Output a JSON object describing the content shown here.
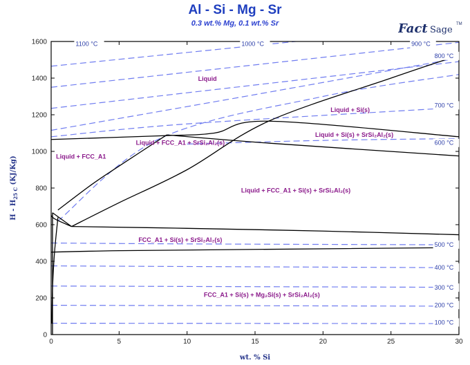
{
  "header": {
    "title": "Al - Si - Mg - Sr",
    "subtitle": "0.3 wt.% Mg,  0.1 wt.% Sr",
    "logo_main": "Fact",
    "logo_sage": "Sage",
    "logo_tm": "TM"
  },
  "colors": {
    "title": "#1f3fbf",
    "boundary": "#000000",
    "isotherm": "#6f7cf0",
    "region_label": "#8b1a8b",
    "logo": "#1d2f6b"
  },
  "chart_data": {
    "type": "line",
    "title": "Al - Si - Mg - Sr",
    "subtitle": "0.3 wt.% Mg,  0.1 wt.% Sr",
    "xlabel": "wt. % Si",
    "ylabel": "H - H25 C (KJ/Kg)",
    "ylabel_parts": {
      "main": "H - H",
      "sub": "25 C",
      "unit": " (KJ/Kg)"
    },
    "xlim": [
      0,
      30
    ],
    "ylim": [
      0,
      1600
    ],
    "x_ticks": [
      0,
      5,
      10,
      15,
      20,
      25,
      30
    ],
    "y_ticks": [
      0,
      200,
      400,
      600,
      800,
      1000,
      1200,
      1400,
      1600
    ],
    "grid": false,
    "boundaries": [
      {
        "x": [
          0,
          8,
          12,
          16,
          30
        ],
        "y": [
          1065,
          1085,
          1100,
          1165,
          1080
        ]
      },
      {
        "x": [
          8.5,
          16,
          30
        ],
        "y": [
          1090,
          1045,
          975
        ]
      },
      {
        "x": [
          0.5,
          3,
          5,
          8.5
        ],
        "y": [
          680,
          820,
          920,
          1090
        ]
      },
      {
        "x": [
          1.5,
          5,
          10,
          16,
          25,
          30
        ],
        "y": [
          590,
          720,
          900,
          1165,
          1400,
          1525
        ]
      },
      {
        "x": [
          0.1,
          1.5
        ],
        "y": [
          665,
          590
        ]
      },
      {
        "x": [
          1.5,
          10,
          20,
          30
        ],
        "y": [
          590,
          580,
          565,
          545
        ]
      },
      {
        "x": [
          0,
          0.3,
          1.5
        ],
        "y": [
          650,
          630,
          590
        ]
      },
      {
        "x": [
          0,
          5,
          15,
          30
        ],
        "y": [
          450,
          458,
          465,
          475
        ]
      },
      {
        "x": [
          0.5,
          0.25,
          0.1,
          0.05
        ],
        "y": [
          640,
          450,
          250,
          60
        ]
      },
      {
        "x": [
          0.1,
          0.1
        ],
        "y": [
          0,
          665
        ]
      }
    ],
    "isotherms": [
      {
        "label": "1100 °C",
        "x": [
          0,
          30
        ],
        "y": [
          1465,
          1690
        ]
      },
      {
        "label": "1000 °C",
        "x": [
          0,
          30
        ],
        "y": [
          1350,
          1595
        ]
      },
      {
        "label": "900 °C",
        "x": [
          0,
          30
        ],
        "y": [
          1235,
          1490
        ]
      },
      {
        "label": "800 °C",
        "x": [
          0,
          15,
          30
        ],
        "y": [
          1115,
          1310,
          1510
        ]
      },
      {
        "label": "700 °C",
        "x": [
          0,
          10,
          30
        ],
        "y": [
          1080,
          1150,
          1240
        ]
      },
      {
        "label": "700 °C (continuation)",
        "x": [
          0.5,
          8,
          20,
          30
        ],
        "y": [
          620,
          1070,
          1300,
          1420
        ]
      },
      {
        "label": "600 °C",
        "x": [
          10,
          20,
          30
        ],
        "y": [
          1040,
          1060,
          1070
        ]
      },
      {
        "label": "500 °C",
        "x": [
          0,
          10,
          30
        ],
        "y": [
          500,
          495,
          490
        ]
      },
      {
        "label": "400 °C",
        "x": [
          0,
          30
        ],
        "y": [
          375,
          365
        ]
      },
      {
        "label": "300 °C",
        "x": [
          0,
          30
        ],
        "y": [
          265,
          258
        ]
      },
      {
        "label": "200 °C",
        "x": [
          0,
          30
        ],
        "y": [
          160,
          155
        ]
      },
      {
        "label": "100 °C",
        "x": [
          0,
          30
        ],
        "y": [
          62,
          60
        ]
      }
    ],
    "isotherm_labels": [
      {
        "text": "1100 °C",
        "x": 1.8,
        "y": 1575
      },
      {
        "text": "1000 °C",
        "x": 14,
        "y": 1575
      },
      {
        "text": "900 °C",
        "x": 26.5,
        "y": 1575
      },
      {
        "text": "800 °C",
        "x": 28.2,
        "y": 1510
      },
      {
        "text": "700 °C",
        "x": 28.2,
        "y": 1240
      },
      {
        "text": "600 °C",
        "x": 28.2,
        "y": 1035
      },
      {
        "text": "500 °C",
        "x": 28.2,
        "y": 480
      },
      {
        "text": "400 °C",
        "x": 28.2,
        "y": 355
      },
      {
        "text": "300 °C",
        "x": 28.2,
        "y": 245
      },
      {
        "text": "200 °C",
        "x": 28.2,
        "y": 150
      },
      {
        "text": "100 °C",
        "x": 28.2,
        "y": 55
      }
    ],
    "region_labels": [
      {
        "text": "Liquid",
        "x": 11.5,
        "y": 1385
      },
      {
        "text": "Liquid + Si(s)",
        "x": 22,
        "y": 1215
      },
      {
        "text": "Liquid + Si(s) + SrSi₂Al₂(s)",
        "x": 22.3,
        "y": 1080
      },
      {
        "text": "Liquid + FCC_A1 + SrSi₂Al₂(s)",
        "x": 9.5,
        "y": 1035
      },
      {
        "text": "Liquid + FCC_A1",
        "x": 2.2,
        "y": 960
      },
      {
        "text": "Liquid + FCC_A1 + Si(s) + SrSi₂Al₂(s)",
        "x": 18,
        "y": 775
      },
      {
        "text": "FCC_A1 + Si(s) + SrSi₂Al₂(s)",
        "x": 9.5,
        "y": 505
      },
      {
        "text": "FCC_A1 + Si(s) + Mg₂Si(s) + SrSi₂Al₂(s)",
        "x": 15.5,
        "y": 205
      }
    ]
  }
}
